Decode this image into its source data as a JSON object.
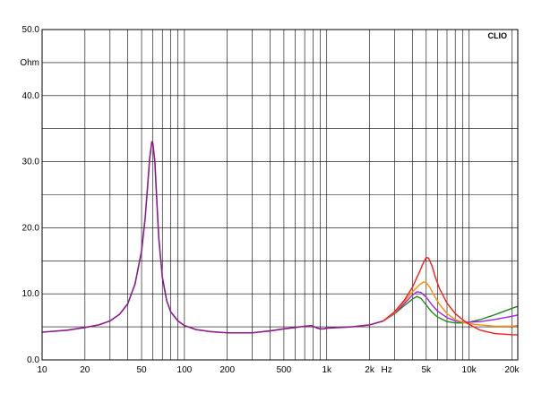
{
  "chart_data": {
    "type": "line",
    "brand_label": "CLIO",
    "y_unit": "Ohm",
    "x_unit": "Hz",
    "x_scale": "log",
    "xlim": [
      10,
      22000
    ],
    "ylim": [
      0,
      50
    ],
    "grid": true,
    "y_ticks": [
      {
        "value": 0,
        "label": "0.0"
      },
      {
        "value": 10,
        "label": "10.0"
      },
      {
        "value": 20,
        "label": "20.0"
      },
      {
        "value": 30,
        "label": "30.0"
      },
      {
        "value": 40,
        "label": "40.0"
      },
      {
        "value": 50,
        "label": "50.0"
      }
    ],
    "x_ticks": [
      {
        "value": 10,
        "label": "10"
      },
      {
        "value": 20,
        "label": "20"
      },
      {
        "value": 50,
        "label": "50"
      },
      {
        "value": 100,
        "label": "100"
      },
      {
        "value": 200,
        "label": "200"
      },
      {
        "value": 500,
        "label": "500"
      },
      {
        "value": 1000,
        "label": "1k"
      },
      {
        "value": 2000,
        "label": "2k"
      },
      {
        "value": 5000,
        "label": "5k"
      },
      {
        "value": 10000,
        "label": "10k"
      },
      {
        "value": 20000,
        "label": "20k"
      }
    ],
    "common_curve": {
      "color": "#8b1a8b",
      "x": [
        10,
        15,
        20,
        25,
        30,
        35,
        40,
        45,
        50,
        53,
        55,
        57,
        59,
        60,
        62,
        64,
        66,
        70,
        75,
        80,
        90,
        100,
        120,
        150,
        200,
        300,
        400,
        500,
        600,
        700,
        780,
        820,
        860,
        900,
        950,
        1000,
        1200,
        1500,
        2000,
        2500
      ],
      "y": [
        4.2,
        4.5,
        4.9,
        5.3,
        5.9,
        6.9,
        8.5,
        11.5,
        16.5,
        21.5,
        26.0,
        30.5,
        33.0,
        32.8,
        30.0,
        24.0,
        18.5,
        12.5,
        9.0,
        7.3,
        5.9,
        5.2,
        4.6,
        4.3,
        4.1,
        4.1,
        4.4,
        4.7,
        4.9,
        5.1,
        5.2,
        5.0,
        4.8,
        4.7,
        4.7,
        4.8,
        4.9,
        5.0,
        5.3,
        5.9
      ]
    },
    "series": [
      {
        "color": "#1a8a1a",
        "x": [
          2500,
          3000,
          3500,
          4000,
          4300,
          4600,
          5000,
          5500,
          6000,
          7000,
          8000,
          9000,
          10000,
          12000,
          15000,
          20000,
          22000
        ],
        "y": [
          5.9,
          7.0,
          8.2,
          9.2,
          9.6,
          9.3,
          8.3,
          7.2,
          6.5,
          5.8,
          5.6,
          5.6,
          5.7,
          6.1,
          6.8,
          7.8,
          8.1
        ]
      },
      {
        "color": "#a020f0",
        "x": [
          2500,
          3000,
          3500,
          4000,
          4300,
          4600,
          5000,
          5500,
          6000,
          7000,
          8000,
          9000,
          10000,
          12000,
          15000,
          20000,
          22000
        ],
        "y": [
          5.9,
          7.1,
          8.5,
          9.8,
          10.3,
          10.2,
          9.5,
          8.3,
          7.4,
          6.4,
          5.9,
          5.7,
          5.7,
          5.8,
          6.1,
          6.6,
          6.8
        ]
      },
      {
        "color": "#ff8c00",
        "x": [
          2500,
          3000,
          3500,
          4000,
          4500,
          4800,
          5000,
          5300,
          5700,
          6200,
          7000,
          8000,
          9000,
          10000,
          12000,
          15000,
          20000,
          22000
        ],
        "y": [
          5.9,
          7.2,
          8.8,
          10.3,
          11.4,
          11.8,
          11.7,
          11.0,
          9.7,
          8.4,
          7.0,
          6.1,
          5.7,
          5.5,
          5.3,
          5.1,
          5.1,
          5.2
        ]
      },
      {
        "color": "#ff1a1a",
        "x": [
          2500,
          3000,
          3500,
          4000,
          4500,
          4800,
          5000,
          5200,
          5500,
          5800,
          6200,
          7000,
          8000,
          9000,
          10000,
          11000,
          12000,
          15000,
          20000,
          22000
        ],
        "y": [
          5.9,
          7.3,
          9.0,
          11.0,
          13.4,
          14.8,
          15.5,
          15.4,
          14.2,
          12.5,
          10.8,
          8.6,
          7.0,
          6.1,
          5.4,
          4.9,
          4.5,
          4.0,
          3.8,
          3.8
        ]
      }
    ]
  }
}
